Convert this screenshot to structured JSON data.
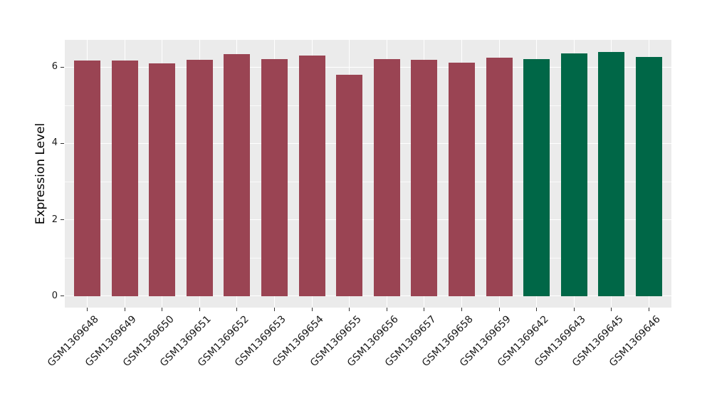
{
  "chart_data": {
    "type": "bar",
    "title": "",
    "xlabel": "",
    "ylabel": "Expression Level",
    "ylim": [
      0,
      6.7
    ],
    "yticks": [
      0,
      2,
      4,
      6
    ],
    "yticks_minor": [
      1,
      3,
      5
    ],
    "grid": "on",
    "legend": "none",
    "plot_background": "#ebebeb",
    "grid_color": "#ffffff",
    "tick_color": "#333333",
    "categories": [
      "GSM1369648",
      "GSM1369649",
      "GSM1369650",
      "GSM1369651",
      "GSM1369652",
      "GSM1369653",
      "GSM1369654",
      "GSM1369655",
      "GSM1369656",
      "GSM1369657",
      "GSM1369658",
      "GSM1369659",
      "GSM1369642",
      "GSM1369643",
      "GSM1369645",
      "GSM1369646"
    ],
    "values": [
      6.17,
      6.18,
      6.1,
      6.2,
      6.35,
      6.21,
      6.31,
      5.8,
      6.22,
      6.19,
      6.11,
      6.24,
      6.21,
      6.36,
      6.39,
      6.27
    ],
    "bar_colors": [
      "#9a4453",
      "#9a4453",
      "#9a4453",
      "#9a4453",
      "#9a4453",
      "#9a4453",
      "#9a4453",
      "#9a4453",
      "#9a4453",
      "#9a4453",
      "#9a4453",
      "#9a4453",
      "#006747",
      "#006747",
      "#006747",
      "#006747"
    ],
    "group_colors": {
      "maroon": "#9a4453",
      "green": "#006747"
    }
  }
}
